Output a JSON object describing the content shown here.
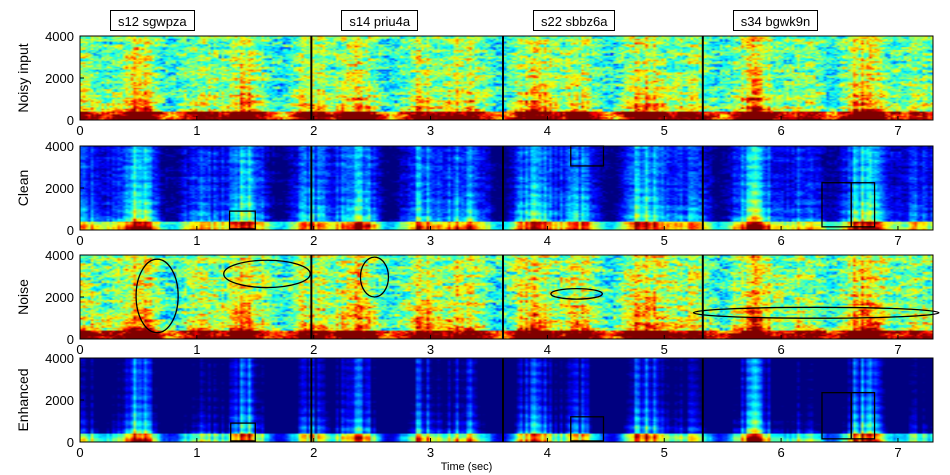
{
  "chart_data": {
    "type": "heatmap",
    "subtype": "spectrogram",
    "colormap": "jet",
    "xlabel": "Time (sec)",
    "xlim": [
      0,
      7.3
    ],
    "xticks": [
      0,
      1,
      2,
      3,
      4,
      5,
      6,
      7
    ],
    "ylim": [
      0,
      4000
    ],
    "yticks": [
      0,
      2000,
      4000
    ],
    "utterances": [
      {
        "label": "s12 sgwpza",
        "start": 0.0,
        "end": 1.98
      },
      {
        "label": "s14 priu4a",
        "start": 1.98,
        "end": 3.62
      },
      {
        "label": "s22 sbbz6a",
        "start": 3.62,
        "end": 5.33
      },
      {
        "label": "s34 bgwk9n",
        "start": 5.33,
        "end": 7.3
      }
    ],
    "panels": [
      {
        "ylabel": "Noisy input",
        "noise_level": 0.75,
        "dark_level": 0.05,
        "boxes": [],
        "ellipses": []
      },
      {
        "ylabel": "Clean",
        "noise_level": 0.3,
        "dark_level": 0.2,
        "boxes": [
          {
            "t0": 1.28,
            "t1": 1.5,
            "f0": 50,
            "f1": 900
          },
          {
            "t0": 4.2,
            "t1": 4.48,
            "f0": 3050,
            "f1": 4000
          },
          {
            "t0": 6.35,
            "t1": 6.6,
            "f0": 150,
            "f1": 2250
          },
          {
            "t0": 6.6,
            "t1": 6.8,
            "f0": 150,
            "f1": 2250
          }
        ],
        "ellipses": []
      },
      {
        "ylabel": "Noise",
        "noise_level": 0.8,
        "dark_level": 0.05,
        "boxes": [],
        "ellipses": [
          {
            "t": 0.66,
            "f": 2050,
            "rt": 0.18,
            "rf": 1750
          },
          {
            "t": 1.6,
            "f": 3100,
            "rt": 0.37,
            "rf": 650
          },
          {
            "t": 2.52,
            "f": 2950,
            "rt": 0.12,
            "rf": 950
          },
          {
            "t": 4.25,
            "f": 2150,
            "rt": 0.22,
            "rf": 250
          },
          {
            "t": 6.3,
            "f": 1250,
            "rt": 1.05,
            "rf": 260
          }
        ]
      },
      {
        "ylabel": "Enhanced",
        "noise_level": 0.15,
        "dark_level": 0.35,
        "boxes": [
          {
            "t0": 1.29,
            "t1": 1.5,
            "f0": 50,
            "f1": 900
          },
          {
            "t0": 4.2,
            "t1": 4.48,
            "f0": 50,
            "f1": 1200
          },
          {
            "t0": 6.35,
            "t1": 6.6,
            "f0": 150,
            "f1": 2350
          },
          {
            "t0": 6.6,
            "t1": 6.8,
            "f0": 150,
            "f1": 2350
          }
        ],
        "ellipses": []
      }
    ]
  }
}
